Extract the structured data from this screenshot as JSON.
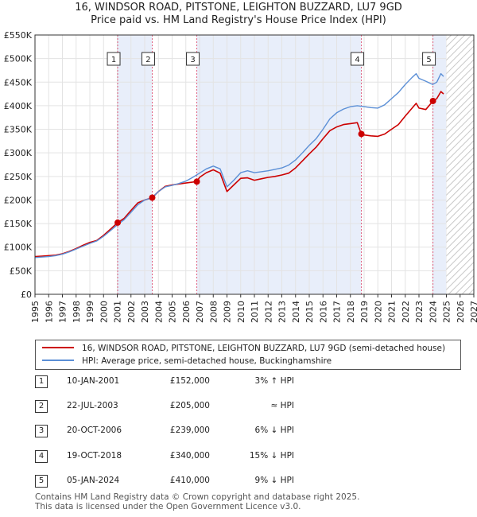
{
  "title_line1": "16, WINDSOR ROAD, PITSTONE, LEIGHTON BUZZARD, LU7 9GD",
  "title_line2": "Price paid vs. HM Land Registry's House Price Index (HPI)",
  "colors": {
    "property": "#cc0000",
    "hpi": "#5b8fd6",
    "shade": "#e8eefa",
    "marker_line": "#e06080"
  },
  "chart_data": {
    "type": "line",
    "title": "Price paid vs. HM Land Registry's House Price Index (HPI)",
    "xlabel": "",
    "ylabel": "",
    "xlim": [
      1995,
      2027
    ],
    "ylim": [
      0,
      550000
    ],
    "x_ticks": [
      "1995",
      "1996",
      "1997",
      "1998",
      "1999",
      "2000",
      "2001",
      "2002",
      "2003",
      "2004",
      "2005",
      "2006",
      "2007",
      "2008",
      "2009",
      "2010",
      "2011",
      "2012",
      "2013",
      "2014",
      "2015",
      "2016",
      "2017",
      "2018",
      "2019",
      "2020",
      "2021",
      "2022",
      "2023",
      "2024",
      "2025",
      "2026",
      "2027"
    ],
    "y_ticks": [
      {
        "value": 0,
        "label": "£0"
      },
      {
        "value": 50000,
        "label": "£50K"
      },
      {
        "value": 100000,
        "label": "£100K"
      },
      {
        "value": 150000,
        "label": "£150K"
      },
      {
        "value": 200000,
        "label": "£200K"
      },
      {
        "value": 250000,
        "label": "£250K"
      },
      {
        "value": 300000,
        "label": "£300K"
      },
      {
        "value": 350000,
        "label": "£350K"
      },
      {
        "value": 400000,
        "label": "£400K"
      },
      {
        "value": 450000,
        "label": "£450K"
      },
      {
        "value": 500000,
        "label": "£500K"
      },
      {
        "value": 550000,
        "label": "£550K"
      }
    ],
    "grid": true,
    "hatched_future_from": 2025.0,
    "shaded_spans": [
      [
        2001.03,
        2003.55
      ],
      [
        2006.8,
        2018.8
      ],
      [
        2024.02,
        2025.0
      ]
    ],
    "series": [
      {
        "name": "16, WINDSOR ROAD, PITSTONE, LEIGHTON BUZZARD, LU7 9GD (semi-detached house)",
        "color": "#cc0000",
        "points": [
          [
            1995.0,
            80000
          ],
          [
            1995.5,
            81000
          ],
          [
            1996.0,
            82000
          ],
          [
            1996.5,
            83000
          ],
          [
            1997.0,
            86000
          ],
          [
            1997.5,
            91000
          ],
          [
            1998.0,
            97000
          ],
          [
            1998.5,
            104000
          ],
          [
            1999.0,
            110000
          ],
          [
            1999.5,
            114000
          ],
          [
            2000.0,
            125000
          ],
          [
            2000.5,
            138000
          ],
          [
            2001.03,
            152000
          ],
          [
            2001.5,
            161000
          ],
          [
            2002.0,
            178000
          ],
          [
            2002.5,
            194000
          ],
          [
            2003.0,
            200000
          ],
          [
            2003.55,
            205000
          ],
          [
            2004.0,
            218000
          ],
          [
            2004.5,
            229000
          ],
          [
            2005.0,
            232000
          ],
          [
            2005.5,
            234000
          ],
          [
            2006.0,
            236000
          ],
          [
            2006.5,
            238000
          ],
          [
            2006.8,
            239000
          ],
          [
            2007.0,
            248000
          ],
          [
            2007.5,
            258000
          ],
          [
            2008.0,
            264000
          ],
          [
            2008.5,
            257000
          ],
          [
            2009.0,
            218000
          ],
          [
            2009.5,
            232000
          ],
          [
            2010.0,
            246000
          ],
          [
            2010.5,
            247000
          ],
          [
            2011.0,
            242000
          ],
          [
            2011.5,
            245000
          ],
          [
            2012.0,
            248000
          ],
          [
            2012.5,
            250000
          ],
          [
            2013.0,
            253000
          ],
          [
            2013.5,
            257000
          ],
          [
            2014.0,
            268000
          ],
          [
            2014.5,
            283000
          ],
          [
            2015.0,
            298000
          ],
          [
            2015.5,
            312000
          ],
          [
            2016.0,
            330000
          ],
          [
            2016.5,
            347000
          ],
          [
            2017.0,
            355000
          ],
          [
            2017.5,
            360000
          ],
          [
            2018.0,
            362000
          ],
          [
            2018.5,
            364000
          ],
          [
            2018.8,
            340000
          ],
          [
            2019.0,
            338000
          ],
          [
            2019.5,
            336000
          ],
          [
            2020.0,
            335000
          ],
          [
            2020.5,
            340000
          ],
          [
            2021.0,
            350000
          ],
          [
            2021.5,
            360000
          ],
          [
            2022.0,
            378000
          ],
          [
            2022.5,
            395000
          ],
          [
            2022.8,
            405000
          ],
          [
            2023.0,
            395000
          ],
          [
            2023.5,
            392000
          ],
          [
            2024.02,
            410000
          ],
          [
            2024.3,
            415000
          ],
          [
            2024.6,
            430000
          ],
          [
            2024.8,
            425000
          ]
        ]
      },
      {
        "name": "HPI: Average price, semi-detached house, Buckinghamshire",
        "color": "#5b8fd6",
        "points": [
          [
            1995.0,
            78000
          ],
          [
            1995.5,
            79000
          ],
          [
            1996.0,
            80000
          ],
          [
            1996.5,
            82000
          ],
          [
            1997.0,
            85000
          ],
          [
            1997.5,
            90000
          ],
          [
            1998.0,
            96000
          ],
          [
            1998.5,
            102000
          ],
          [
            1999.0,
            108000
          ],
          [
            1999.5,
            113000
          ],
          [
            2000.0,
            123000
          ],
          [
            2000.5,
            135000
          ],
          [
            2001.03,
            148000
          ],
          [
            2001.5,
            158000
          ],
          [
            2002.0,
            174000
          ],
          [
            2002.5,
            190000
          ],
          [
            2003.0,
            200000
          ],
          [
            2003.55,
            205000
          ],
          [
            2004.0,
            218000
          ],
          [
            2004.5,
            228000
          ],
          [
            2005.0,
            231000
          ],
          [
            2005.5,
            235000
          ],
          [
            2006.0,
            240000
          ],
          [
            2006.5,
            248000
          ],
          [
            2007.0,
            257000
          ],
          [
            2007.5,
            266000
          ],
          [
            2008.0,
            272000
          ],
          [
            2008.5,
            266000
          ],
          [
            2009.0,
            228000
          ],
          [
            2009.5,
            242000
          ],
          [
            2010.0,
            258000
          ],
          [
            2010.5,
            262000
          ],
          [
            2011.0,
            258000
          ],
          [
            2011.5,
            260000
          ],
          [
            2012.0,
            262000
          ],
          [
            2012.5,
            265000
          ],
          [
            2013.0,
            268000
          ],
          [
            2013.5,
            274000
          ],
          [
            2014.0,
            285000
          ],
          [
            2014.5,
            300000
          ],
          [
            2015.0,
            316000
          ],
          [
            2015.5,
            330000
          ],
          [
            2016.0,
            350000
          ],
          [
            2016.5,
            372000
          ],
          [
            2017.0,
            385000
          ],
          [
            2017.5,
            393000
          ],
          [
            2018.0,
            398000
          ],
          [
            2018.5,
            400000
          ],
          [
            2019.0,
            398000
          ],
          [
            2019.5,
            396000
          ],
          [
            2020.0,
            395000
          ],
          [
            2020.5,
            402000
          ],
          [
            2021.0,
            415000
          ],
          [
            2021.5,
            428000
          ],
          [
            2022.0,
            445000
          ],
          [
            2022.5,
            460000
          ],
          [
            2022.8,
            468000
          ],
          [
            2023.0,
            458000
          ],
          [
            2023.5,
            452000
          ],
          [
            2024.0,
            445000
          ],
          [
            2024.3,
            450000
          ],
          [
            2024.6,
            468000
          ],
          [
            2024.8,
            462000
          ]
        ]
      }
    ],
    "sale_markers": [
      {
        "num": "1",
        "x": 2001.03,
        "y": 152000
      },
      {
        "num": "2",
        "x": 2003.55,
        "y": 205000
      },
      {
        "num": "3",
        "x": 2006.8,
        "y": 239000
      },
      {
        "num": "4",
        "x": 2018.8,
        "y": 340000
      },
      {
        "num": "5",
        "x": 2024.02,
        "y": 410000
      }
    ]
  },
  "legend": {
    "property_label": "16, WINDSOR ROAD, PITSTONE, LEIGHTON BUZZARD, LU7 9GD (semi-detached house)",
    "hpi_label": "HPI: Average price, semi-detached house, Buckinghamshire"
  },
  "sales": [
    {
      "num": "1",
      "date": "10-JAN-2001",
      "price": "£152,000",
      "hpi": "3% ↑ HPI"
    },
    {
      "num": "2",
      "date": "22-JUL-2003",
      "price": "£205,000",
      "hpi": "≈ HPI"
    },
    {
      "num": "3",
      "date": "20-OCT-2006",
      "price": "£239,000",
      "hpi": "6% ↓ HPI"
    },
    {
      "num": "4",
      "date": "19-OCT-2018",
      "price": "£340,000",
      "hpi": "15% ↓ HPI"
    },
    {
      "num": "5",
      "date": "05-JAN-2024",
      "price": "£410,000",
      "hpi": "9% ↓ HPI"
    }
  ],
  "footer_line1": "Contains HM Land Registry data © Crown copyright and database right 2025.",
  "footer_line2": "This data is licensed under the Open Government Licence v3.0."
}
